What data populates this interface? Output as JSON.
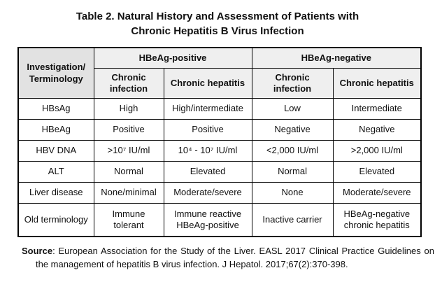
{
  "title": {
    "line1": "Table 2. Natural History and Assessment of Patients with",
    "line2": "Chronic Hepatitis B Virus Infection"
  },
  "table": {
    "corner": {
      "line1": "Investigation/",
      "line2": "Terminology"
    },
    "group_headers": [
      "HBeAg-positive",
      "HBeAg-negative"
    ],
    "sub_headers": [
      "Chronic infection",
      "Chronic hepatitis",
      "Chronic infection",
      "Chronic hepatitis"
    ],
    "rows": [
      {
        "label": "HBsAg",
        "cells": [
          "High",
          "High/intermediate",
          "Low",
          "Intermediate"
        ]
      },
      {
        "label": "HBeAg",
        "cells": [
          "Positive",
          "Positive",
          "Negative",
          "Negative"
        ]
      },
      {
        "label": "HBV DNA",
        "cells": [
          ">10⁷ IU/ml",
          "10⁴ - 10⁷ IU/ml",
          "<2,000 IU/ml",
          ">2,000 IU/ml"
        ]
      },
      {
        "label": "ALT",
        "cells": [
          "Normal",
          "Elevated",
          "Normal",
          "Elevated"
        ]
      },
      {
        "label": "Liver disease",
        "cells": [
          "None/minimal",
          "Moderate/severe",
          "None",
          "Moderate/severe"
        ]
      },
      {
        "label": "Old terminology",
        "cells": [
          "Immune tolerant",
          "Immune reactive HBeAg-positive",
          "Inactive carrier",
          "HBeAg-negative chronic hepatitis"
        ]
      }
    ]
  },
  "source": {
    "label": "Source",
    "text": ": European Association for the Study of the Liver. EASL 2017 Clinical Practice Guidelines on the management of hepatitis B virus infection. J Hepatol. 2017;67(2):370-398."
  },
  "colors": {
    "corner_header_bg": "#e2e2e2",
    "header_bg": "#efefef",
    "border": "#000000",
    "text": "#111111",
    "page_bg": "#ffffff"
  }
}
